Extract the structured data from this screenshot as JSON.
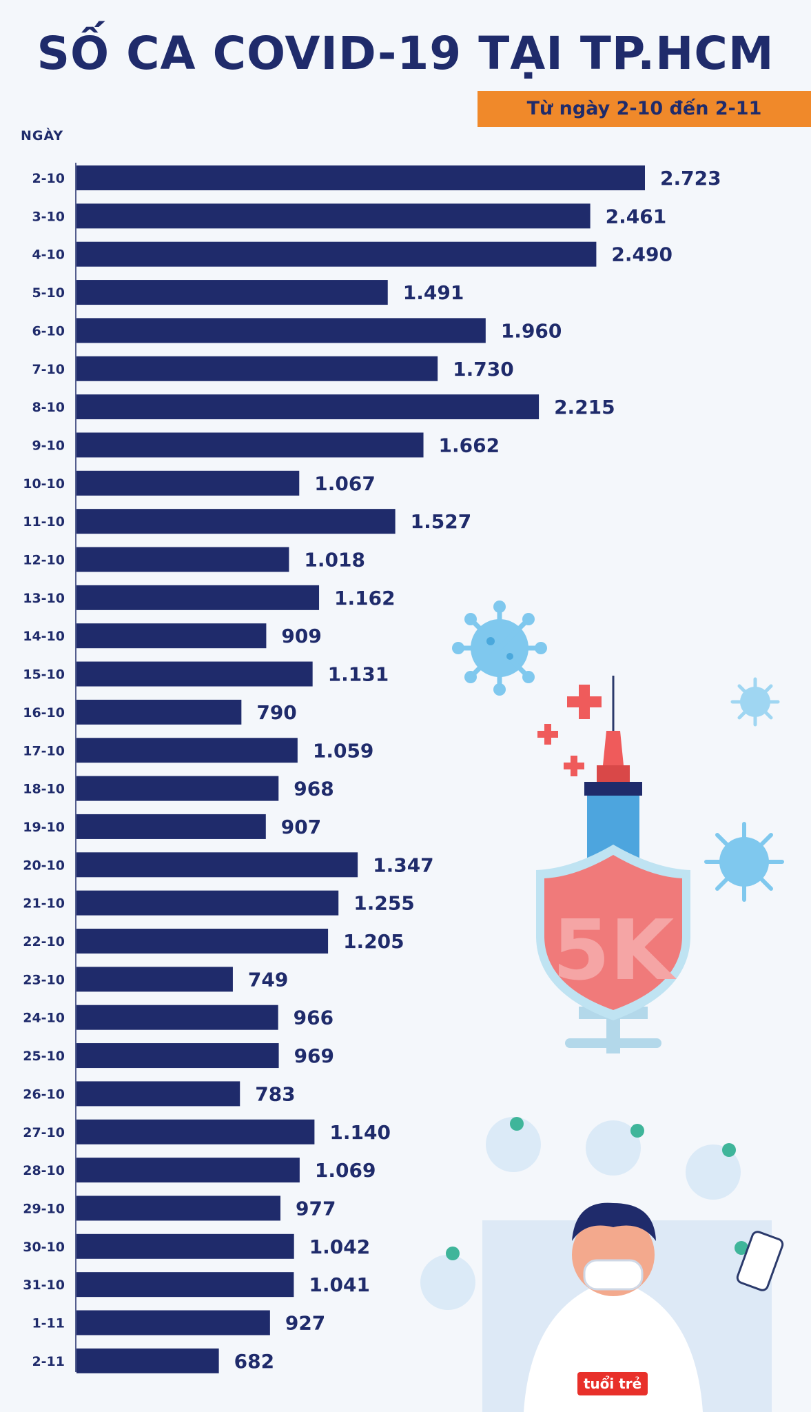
{
  "title": "SỐ CA COVID-19 TẠI TP.HCM",
  "subtitle": "Từ ngày 2-10 đến 2-11",
  "logo_text": "tuổi trẻ online",
  "colors": {
    "bar": "#1f2b6b",
    "title": "#1f2b6b",
    "badge": "#f0892a",
    "background": "#f4f7fb"
  },
  "chart_data": {
    "type": "bar",
    "orientation": "horizontal",
    "ylabel": "NGÀY",
    "categories": [
      "2-10",
      "3-10",
      "4-10",
      "5-10",
      "6-10",
      "7-10",
      "8-10",
      "9-10",
      "10-10",
      "11-10",
      "12-10",
      "13-10",
      "14-10",
      "15-10",
      "16-10",
      "17-10",
      "18-10",
      "19-10",
      "20-10",
      "21-10",
      "22-10",
      "23-10",
      "24-10",
      "25-10",
      "26-10",
      "27-10",
      "28-10",
      "29-10",
      "30-10",
      "31-10",
      "1-11",
      "2-11"
    ],
    "values": [
      2723,
      2461,
      2490,
      1491,
      1960,
      1730,
      2215,
      1662,
      1067,
      1527,
      1018,
      1162,
      909,
      1131,
      790,
      1059,
      968,
      907,
      1347,
      1255,
      1205,
      749,
      966,
      969,
      783,
      1140,
      1069,
      977,
      1042,
      1041,
      927,
      682
    ],
    "value_labels": [
      "2.723",
      "2.461",
      "2.490",
      "1.491",
      "1.960",
      "1.730",
      "2.215",
      "1.662",
      "1.067",
      "1.527",
      "1.018",
      "1.162",
      "909",
      "1.131",
      "790",
      "1.059",
      "968",
      "907",
      "1.347",
      "1.255",
      "1.205",
      "749",
      "966",
      "969",
      "783",
      "1.140",
      "1.069",
      "977",
      "1.042",
      "1.041",
      "927",
      "682"
    ],
    "grid": false,
    "legend": "none"
  }
}
